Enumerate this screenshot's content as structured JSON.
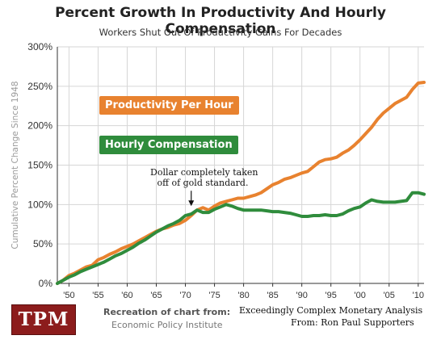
{
  "colors": {
    "productivity": "#e8822f",
    "compensation": "#2f8c3c",
    "logo": "#8c1c1c"
  },
  "chart_data": {
    "type": "line",
    "title": "Percent Growth In Productivity And Hourly Compensation",
    "subtitle": "Workers Shut Out Of Productivity Gains For Decades",
    "xlabel": "",
    "ylabel": "Cumulative Percent Change Since 1948",
    "xlim": [
      1948,
      2011
    ],
    "ylim": [
      0,
      300
    ],
    "x_tick_values": [
      1950,
      1955,
      1960,
      1965,
      1970,
      1975,
      1980,
      1985,
      1990,
      1995,
      2000,
      2005,
      2010
    ],
    "x_tick_labels": [
      "'50",
      "'55",
      "'60",
      "'65",
      "'70",
      "'75",
      "'80",
      "'85",
      "'90",
      "'95",
      "'00",
      "'05",
      "'10"
    ],
    "y_tick_values": [
      0,
      50,
      100,
      150,
      200,
      250,
      300
    ],
    "y_tick_labels": [
      "0%",
      "50%",
      "100%",
      "150%",
      "200%",
      "250%",
      "300%"
    ],
    "grid": true,
    "x": [
      1948,
      1949,
      1950,
      1951,
      1952,
      1953,
      1954,
      1955,
      1956,
      1957,
      1958,
      1959,
      1960,
      1961,
      1962,
      1963,
      1964,
      1965,
      1966,
      1967,
      1968,
      1969,
      1970,
      1971,
      1972,
      1973,
      1974,
      1975,
      1976,
      1977,
      1978,
      1979,
      1980,
      1981,
      1982,
      1983,
      1984,
      1985,
      1986,
      1987,
      1988,
      1989,
      1990,
      1991,
      1992,
      1993,
      1994,
      1995,
      1996,
      1997,
      1998,
      1999,
      2000,
      2001,
      2002,
      2003,
      2004,
      2005,
      2006,
      2007,
      2008,
      2009,
      2010,
      2011
    ],
    "series": [
      {
        "name": "Productivity Per Hour",
        "values": [
          0,
          4,
          10,
          13,
          17,
          21,
          23,
          30,
          33,
          37,
          40,
          44,
          47,
          50,
          54,
          58,
          62,
          66,
          69,
          71,
          74,
          76,
          80,
          86,
          93,
          96,
          93,
          98,
          102,
          104,
          106,
          108,
          108,
          110,
          112,
          115,
          120,
          125,
          128,
          132,
          134,
          137,
          140,
          142,
          148,
          154,
          157,
          158,
          160,
          165,
          169,
          175,
          182,
          190,
          198,
          208,
          216,
          222,
          228,
          232,
          236,
          246,
          254,
          255
        ]
      },
      {
        "name": "Hourly Compensation",
        "values": [
          0,
          4,
          8,
          11,
          15,
          18,
          21,
          24,
          27,
          31,
          35,
          38,
          42,
          46,
          51,
          55,
          60,
          65,
          69,
          73,
          76,
          80,
          86,
          88,
          93,
          90,
          90,
          94,
          97,
          100,
          98,
          95,
          93,
          93,
          93,
          93,
          92,
          91,
          91,
          90,
          89,
          87,
          85,
          85,
          86,
          86,
          87,
          86,
          86,
          88,
          92,
          95,
          97,
          102,
          106,
          104,
          103,
          103,
          103,
          104,
          105,
          115,
          115,
          113
        ]
      }
    ],
    "annotations": [
      {
        "text": "Dollar completely taken off of gold  standard.",
        "x": 1971,
        "y": 97
      }
    ]
  },
  "legend": {
    "productivity_label": "Productivity Per Hour",
    "compensation_label": "Hourly Compensation"
  },
  "annotation": {
    "line1": "Dollar completely taken",
    "line2": "off of gold  standard."
  },
  "footer": {
    "logo_text": "TPM",
    "credit_line1": "Recreation of chart from:",
    "credit_line2": "Economic Policy Institute",
    "credit_line3": "Exceedingly Complex Monetary Analysis",
    "credit_line4": "From: Ron Paul Supporters"
  }
}
